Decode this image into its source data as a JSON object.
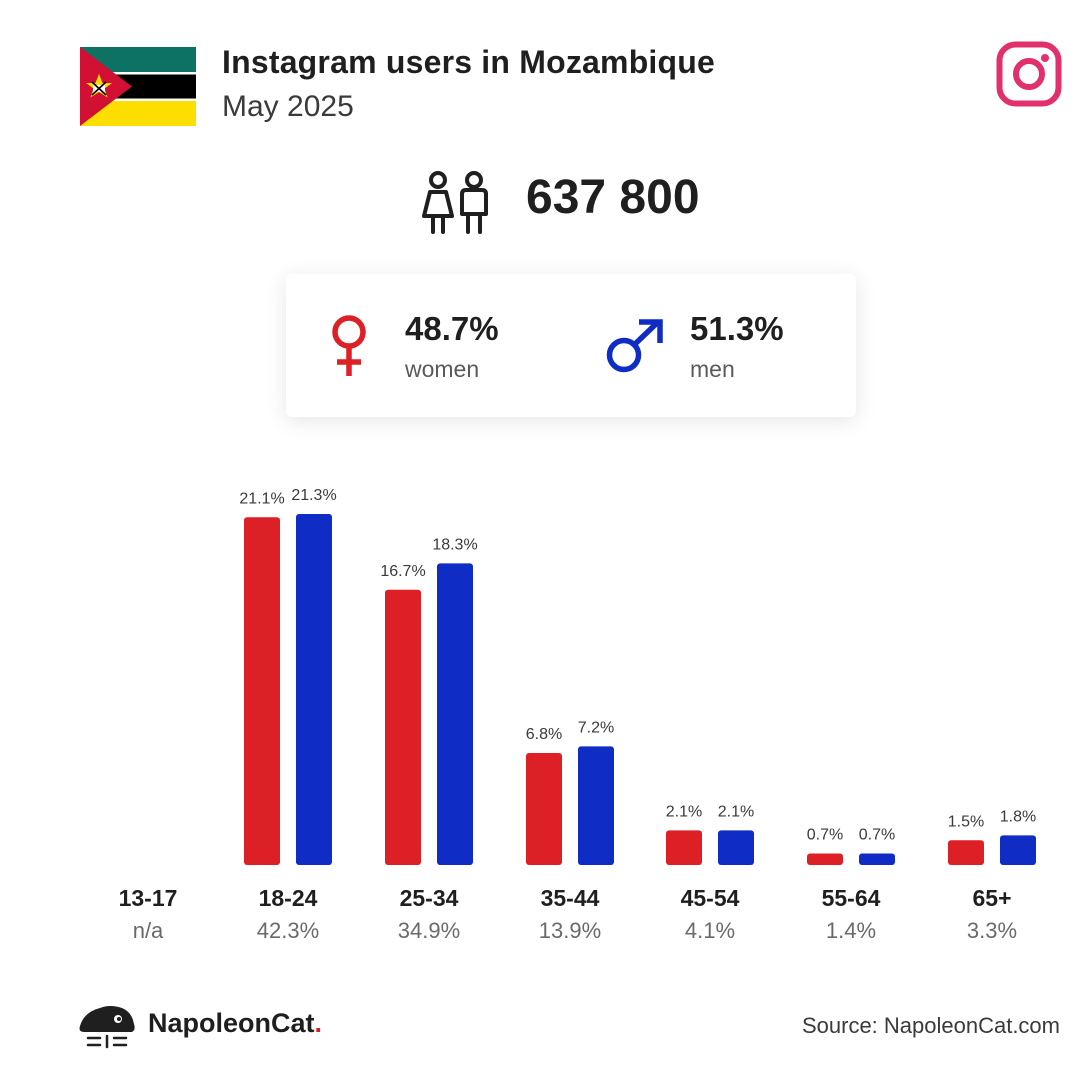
{
  "header": {
    "title": "Instagram users in Mozambique",
    "subtitle": "May 2025",
    "flag_icon": "mozambique-flag-icon",
    "platform_icon": "instagram-icon"
  },
  "total": {
    "value": "637 800",
    "icon": "users-icon"
  },
  "gender": {
    "women": {
      "pct": "48.7%",
      "label": "women",
      "icon": "female-symbol-icon"
    },
    "men": {
      "pct": "51.3%",
      "label": "men",
      "icon": "male-symbol-icon"
    }
  },
  "colors": {
    "women": "#dd1f26",
    "men": "#0f2cc4",
    "instagram": "#e1306c",
    "flag_green": "#0d7263",
    "flag_yellow": "#fcdf00",
    "flag_red": "#d21034"
  },
  "chart_data": {
    "type": "bar",
    "categories": [
      "13-17",
      "18-24",
      "25-34",
      "35-44",
      "45-54",
      "55-64",
      "65+"
    ],
    "category_totals": [
      "n/a",
      "42.3%",
      "34.9%",
      "13.9%",
      "4.1%",
      "1.4%",
      "3.3%"
    ],
    "series": [
      {
        "name": "women",
        "values": [
          null,
          21.1,
          16.7,
          6.8,
          2.1,
          0.7,
          1.5
        ],
        "labels": [
          "",
          "21.1%",
          "16.7%",
          "6.8%",
          "2.1%",
          "0.7%",
          "1.5%"
        ]
      },
      {
        "name": "men",
        "values": [
          null,
          21.3,
          18.3,
          7.2,
          2.1,
          0.7,
          1.8
        ],
        "labels": [
          "",
          "21.3%",
          "18.3%",
          "7.2%",
          "2.1%",
          "0.7%",
          "1.8%"
        ]
      }
    ],
    "ylim": [
      0,
      21.3
    ],
    "grid": false
  },
  "footer": {
    "logo_text": "NapoleonCat",
    "logo_dot": ".",
    "logo_icon": "napoleoncat-logo-icon",
    "source": "Source: NapoleonCat.com"
  }
}
